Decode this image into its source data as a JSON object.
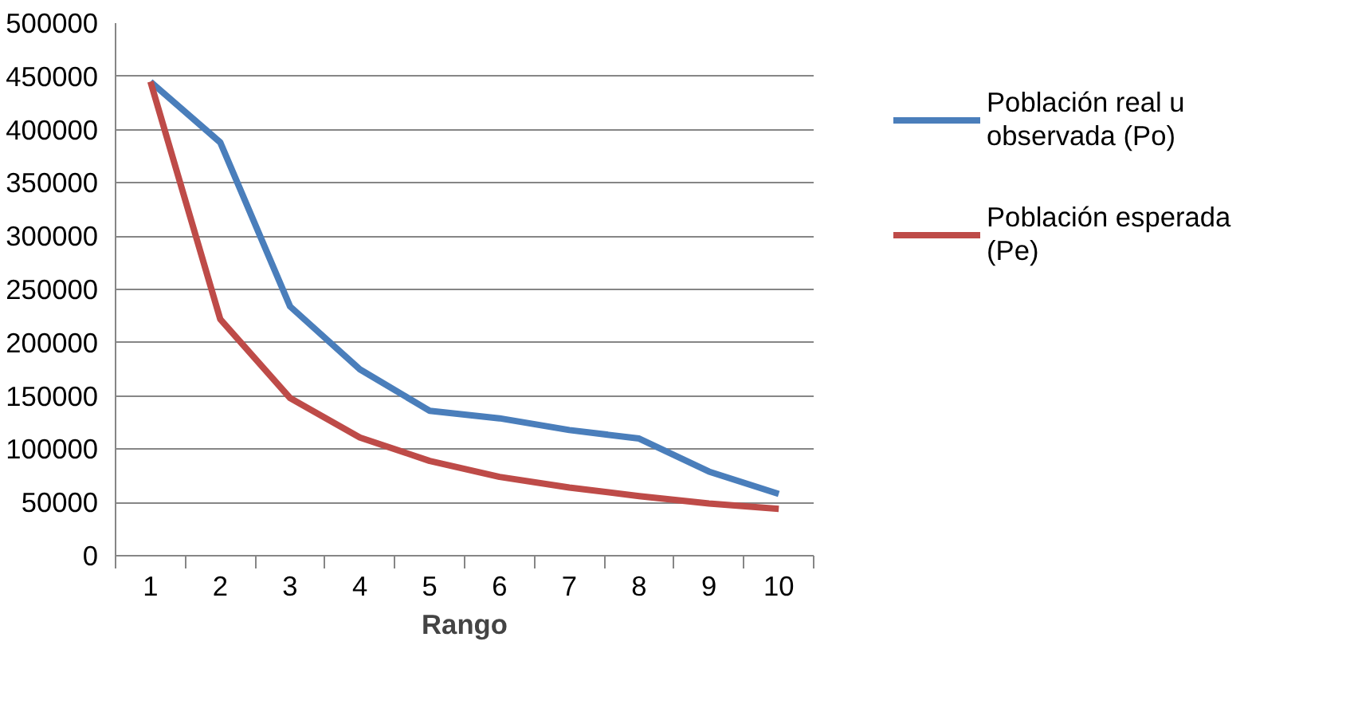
{
  "chart_data": {
    "type": "line",
    "xlabel": "Rango",
    "categories": [
      "1",
      "2",
      "3",
      "4",
      "5",
      "6",
      "7",
      "8",
      "9",
      "10"
    ],
    "series": [
      {
        "name": "Población real u observada (Po)",
        "color": "#4a7ebb",
        "values": [
          445000,
          388000,
          234000,
          175000,
          136000,
          129000,
          118000,
          110000,
          79000,
          58000
        ]
      },
      {
        "name": "Población esperada (Pe)",
        "color": "#be4b48",
        "values": [
          445000,
          222000,
          148000,
          111000,
          89000,
          74000,
          64000,
          56000,
          49000,
          44000
        ]
      }
    ],
    "ylim": [
      0,
      500000
    ],
    "yticks": [
      0,
      50000,
      100000,
      150000,
      200000,
      250000,
      300000,
      350000,
      400000,
      450000,
      500000
    ],
    "grid": "y",
    "legend": "right",
    "marker": "none",
    "line_style": "solid"
  }
}
